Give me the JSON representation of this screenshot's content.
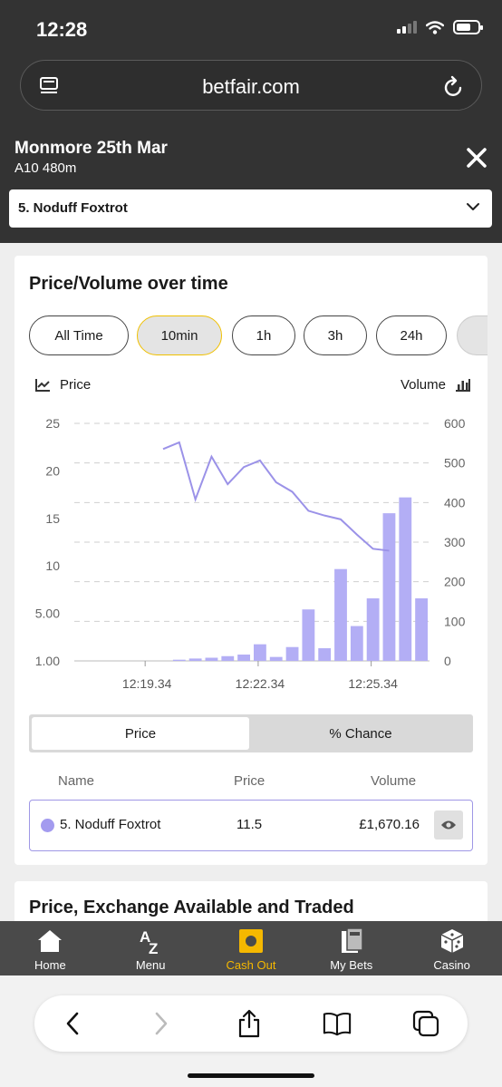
{
  "status_bar": {
    "time": "12:28"
  },
  "browser": {
    "url": "betfair.com"
  },
  "race": {
    "title": "Monmore 25th Mar",
    "subtitle": "A10 480m"
  },
  "runner_select": {
    "selected": "5. Noduff Foxtrot"
  },
  "chart_card": {
    "title": "Price/Volume over time",
    "time_ranges": [
      "All Time",
      "10min",
      "1h",
      "3h",
      "24h"
    ],
    "active_range": "10min",
    "legend_price": "Price",
    "legend_volume": "Volume"
  },
  "chart_data": {
    "type": "bar+line",
    "x_ticks": [
      "12:19.34",
      "12:22.34",
      "12:25.34"
    ],
    "y_left_ticks": [
      "1.00",
      "5.00",
      "10",
      "15",
      "20",
      "25"
    ],
    "y_right_ticks": [
      "0",
      "100",
      "200",
      "300",
      "400",
      "500",
      "600"
    ],
    "volume_range": [
      0,
      600
    ],
    "price_ticks_values": [
      1,
      5,
      10,
      15,
      20,
      25
    ],
    "volume_bars": [
      0,
      0,
      0,
      0,
      0,
      0,
      3,
      6,
      8,
      12,
      16,
      42,
      10,
      35,
      130,
      32,
      232,
      88,
      158,
      373,
      413,
      158
    ],
    "price_series": [
      {
        "i": 5,
        "price": 22.3
      },
      {
        "i": 6,
        "price": 23.0
      },
      {
        "i": 7,
        "price": 17.0
      },
      {
        "i": 8,
        "price": 21.5
      },
      {
        "i": 9,
        "price": 18.6
      },
      {
        "i": 10,
        "price": 20.4
      },
      {
        "i": 11,
        "price": 21.1
      },
      {
        "i": 12,
        "price": 18.8
      },
      {
        "i": 13,
        "price": 17.8
      },
      {
        "i": 14,
        "price": 15.8
      },
      {
        "i": 15,
        "price": 15.3
      },
      {
        "i": 16,
        "price": 14.9
      },
      {
        "i": 17,
        "price": 13.3
      },
      {
        "i": 18,
        "price": 11.8
      },
      {
        "i": 19,
        "price": 11.6
      }
    ],
    "series": [
      {
        "name": "Volume",
        "color": "#b3aef5"
      },
      {
        "name": "Price",
        "color": "#9b92e8"
      }
    ],
    "grid": true
  },
  "toggle": {
    "option_a": "Price",
    "option_b": "% Chance",
    "active": "Price"
  },
  "table": {
    "headers": [
      "Name",
      "Price",
      "Volume"
    ],
    "row": {
      "name": "5. Noduff Foxtrot",
      "price": "11.5",
      "volume": "£1,670.16"
    }
  },
  "second_card": {
    "title": "Price, Exchange Available and Traded"
  },
  "bottom_nav": [
    {
      "label": "Home",
      "icon": "home-icon"
    },
    {
      "label": "Menu",
      "icon": "az-icon"
    },
    {
      "label": "Cash Out",
      "icon": "cash-out-icon",
      "active": true
    },
    {
      "label": "My Bets",
      "icon": "my-bets-icon"
    },
    {
      "label": "Casino",
      "icon": "dice-icon"
    }
  ],
  "colors": {
    "accent": "#f5b800",
    "series": "#a39bef",
    "topbar": "#333333"
  }
}
